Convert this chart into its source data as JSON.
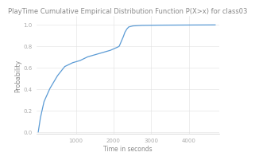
{
  "title": "PlayTime Cumulative Empirical Distribution Function P(X>x) for class03",
  "xlabel": "Time in seconds",
  "ylabel": "Probability",
  "xlim": [
    -50,
    4800
  ],
  "ylim": [
    -0.02,
    1.08
  ],
  "xticks": [
    1000,
    2000,
    3000,
    4000
  ],
  "yticks": [
    0,
    0.2,
    0.4,
    0.6,
    0.8,
    1.0
  ],
  "line_color": "#5b9bd5",
  "background_color": "#ffffff",
  "grid_color": "#e0e0e0",
  "title_fontsize": 6.0,
  "label_fontsize": 5.5,
  "tick_fontsize": 5.0,
  "title_color": "#888888",
  "label_color": "#888888",
  "tick_color": "#aaaaaa"
}
